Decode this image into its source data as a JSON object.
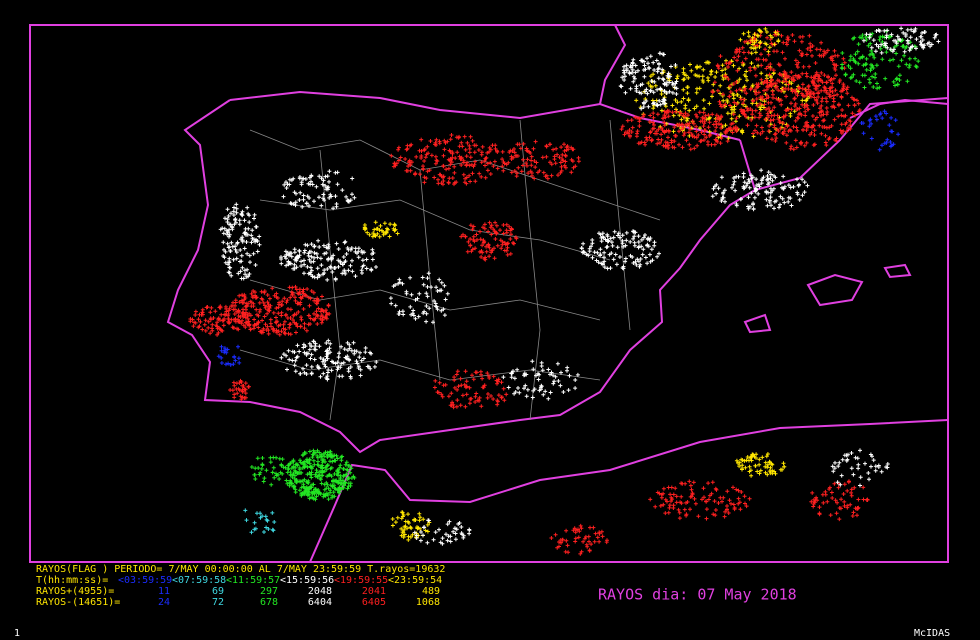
{
  "header": "RAYOS(FLAG ) PERIODO= 7/MAY 00:00:00 AL  7/MAY 23:59:59  T.rayos=19632",
  "intervals_label": "T(hh:mm:ss)=",
  "intervals": [
    {
      "label": "<03:59:59",
      "color": "#1a2cff"
    },
    {
      "label": "<07:59:58",
      "color": "#3fd7e0"
    },
    {
      "label": "<11:59:57",
      "color": "#22e622"
    },
    {
      "label": "<15:59:56",
      "color": "#ffffff"
    },
    {
      "label": "<19:59:55",
      "color": "#ff2020"
    },
    {
      "label": "<23:59:54",
      "color": "#ffe600"
    }
  ],
  "rows": [
    {
      "label": "RAYOS+(4955)=",
      "values": [
        "11",
        "69",
        "297",
        "2048",
        "2041",
        "489"
      ]
    },
    {
      "label": "RAYOS-(14651)=",
      "values": [
        "24",
        "72",
        "678",
        "6404",
        "6405",
        "1068"
      ]
    }
  ],
  "title": "RAYOS dia: 07 May 2018",
  "frame_number": "1",
  "software": "McIDAS"
}
